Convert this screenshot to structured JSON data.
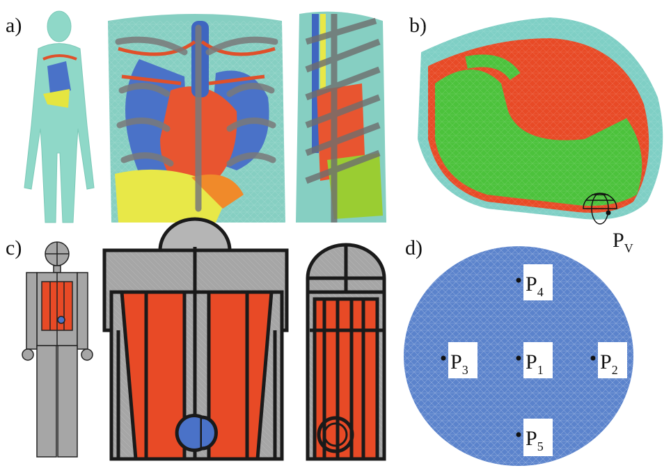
{
  "panels": [
    {
      "label": "a)"
    },
    {
      "label": "b)",
      "points": [
        {
          "base": "P",
          "sub": "V"
        }
      ]
    },
    {
      "label": "c)"
    },
    {
      "label": "d)",
      "points": [
        {
          "base": "P",
          "sub": "4"
        },
        {
          "base": "P",
          "sub": "3"
        },
        {
          "base": "P",
          "sub": "1"
        },
        {
          "base": "P",
          "sub": "2"
        },
        {
          "base": "P",
          "sub": "5"
        }
      ]
    }
  ]
}
